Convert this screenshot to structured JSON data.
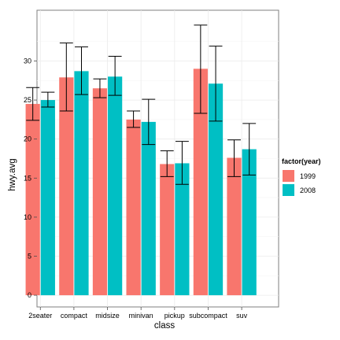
{
  "chart_data": {
    "type": "bar",
    "xlabel": "class",
    "ylabel": "hwy.avg",
    "categories": [
      "2seater",
      "compact",
      "midsize",
      "minivan",
      "pickup",
      "subcompact",
      "suv"
    ],
    "ylim": [
      -1.5,
      36.5
    ],
    "yticks": [
      0,
      5,
      10,
      15,
      20,
      25,
      30
    ],
    "grid": true,
    "legend": {
      "title": "factor(year)",
      "position": "right"
    },
    "series": [
      {
        "name": "1999",
        "color": "#F8766D",
        "values": [
          24.5,
          27.9,
          26.5,
          22.5,
          16.8,
          29.0,
          17.6
        ],
        "error_low": [
          22.4,
          23.6,
          25.3,
          21.5,
          15.2,
          23.3,
          15.2
        ],
        "error_high": [
          26.6,
          32.3,
          27.7,
          23.6,
          18.5,
          34.6,
          19.9
        ]
      },
      {
        "name": "2008",
        "color": "#00BFC4",
        "values": [
          25.0,
          28.7,
          28.0,
          22.2,
          16.9,
          27.1,
          18.7
        ],
        "error_low": [
          24.1,
          25.7,
          25.6,
          19.3,
          14.2,
          22.3,
          15.4
        ],
        "error_high": [
          26.0,
          31.8,
          30.6,
          25.1,
          19.7,
          31.9,
          22.0
        ]
      }
    ]
  }
}
